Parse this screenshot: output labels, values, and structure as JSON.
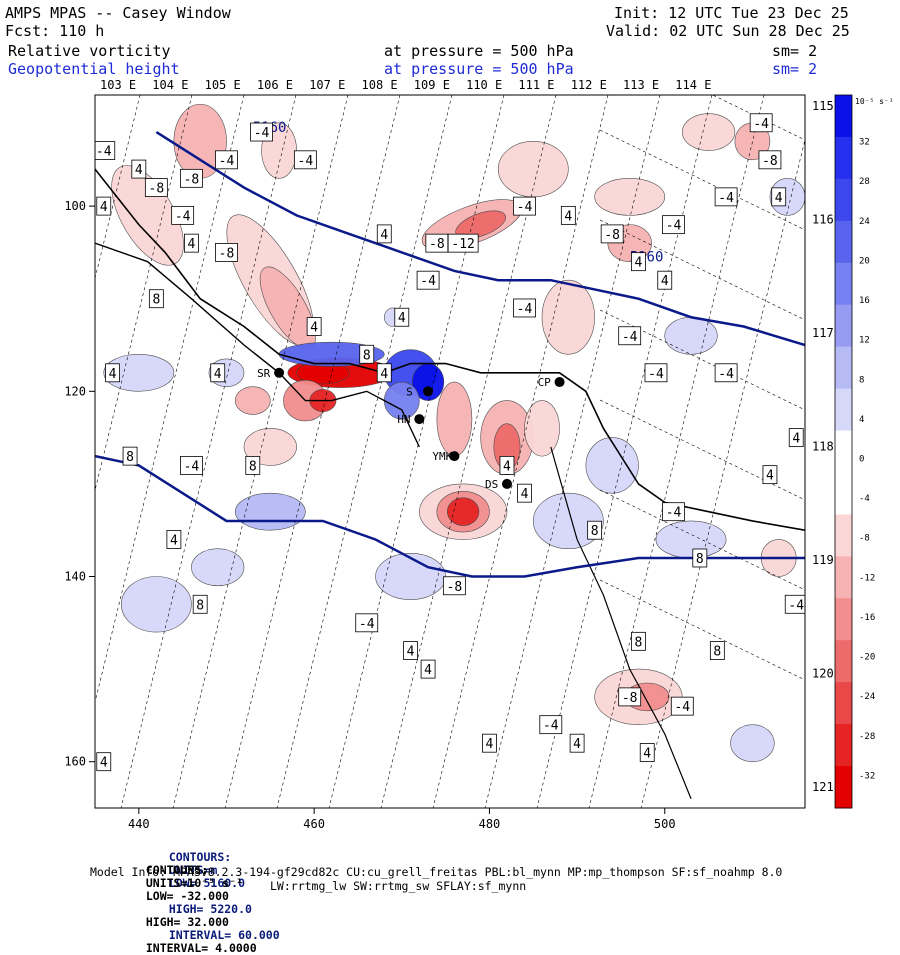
{
  "header": {
    "title": "AMPS MPAS -- Casey Window",
    "fcst": "Fcst: 110 h",
    "init": "Init: 12 UTC Tue 23 Dec 25",
    "valid": "Valid: 02 UTC Sun 28 Dec 25",
    "field1": {
      "name": "Relative vorticity",
      "level": "at pressure = 500 hPa",
      "sm": "sm= 2"
    },
    "field2": {
      "name": "Geopotential height",
      "level": "at pressure = 500 hPa",
      "sm": "sm= 2"
    }
  },
  "map": {
    "lon_top_labels": [
      "103 E",
      "104 E",
      "105 E",
      "106 E",
      "107 E",
      "108 E",
      "109 E",
      "110 E",
      "111 E",
      "112 E",
      "113 E",
      "114 E"
    ],
    "lon_right_labels": [
      "115 E",
      "116 E",
      "117 E",
      "118 E",
      "119 E",
      "120 E",
      "121 E"
    ],
    "x_ticks": [
      440,
      460,
      480,
      500
    ],
    "y_ticks": [
      100,
      120,
      140,
      160
    ],
    "x_range": [
      435,
      516
    ],
    "y_range": [
      88,
      165
    ],
    "height_contour_label": "5160",
    "station_labels": [
      "SR",
      "CP",
      "HN",
      "YMKS",
      "DS",
      "S"
    ],
    "contour_value_labels": [
      {
        "x": 436,
        "y": 94,
        "t": "-4"
      },
      {
        "x": 440,
        "y": 96,
        "t": "4"
      },
      {
        "x": 442,
        "y": 98,
        "t": "-8"
      },
      {
        "x": 446,
        "y": 97,
        "t": "-8"
      },
      {
        "x": 450,
        "y": 95,
        "t": "-4"
      },
      {
        "x": 454,
        "y": 92,
        "t": "-4"
      },
      {
        "x": 459,
        "y": 95,
        "t": "-4"
      },
      {
        "x": 468,
        "y": 103,
        "t": "4"
      },
      {
        "x": 474,
        "y": 104,
        "t": "-8"
      },
      {
        "x": 477,
        "y": 104,
        "t": "-12"
      },
      {
        "x": 484,
        "y": 100,
        "t": "-4"
      },
      {
        "x": 489,
        "y": 101,
        "t": "4"
      },
      {
        "x": 494,
        "y": 103,
        "t": "-8"
      },
      {
        "x": 501,
        "y": 102,
        "t": "-4"
      },
      {
        "x": 507,
        "y": 99,
        "t": "-4"
      },
      {
        "x": 513,
        "y": 99,
        "t": "4"
      },
      {
        "x": 512,
        "y": 95,
        "t": "-8"
      },
      {
        "x": 511,
        "y": 91,
        "t": "-4"
      },
      {
        "x": 436,
        "y": 100,
        "t": "4"
      },
      {
        "x": 445,
        "y": 101,
        "t": "-4"
      },
      {
        "x": 446,
        "y": 104,
        "t": "4"
      },
      {
        "x": 450,
        "y": 105,
        "t": "-8"
      },
      {
        "x": 442,
        "y": 110,
        "t": "8"
      },
      {
        "x": 460,
        "y": 113,
        "t": "4"
      },
      {
        "x": 466,
        "y": 116,
        "t": "8"
      },
      {
        "x": 470,
        "y": 112,
        "t": "4"
      },
      {
        "x": 473,
        "y": 108,
        "t": "-4"
      },
      {
        "x": 484,
        "y": 111,
        "t": "-4"
      },
      {
        "x": 497,
        "y": 106,
        "t": "4"
      },
      {
        "x": 500,
        "y": 108,
        "t": "4"
      },
      {
        "x": 496,
        "y": 114,
        "t": "-4"
      },
      {
        "x": 499,
        "y": 118,
        "t": "-4"
      },
      {
        "x": 507,
        "y": 118,
        "t": "-4"
      },
      {
        "x": 437,
        "y": 118,
        "t": "4"
      },
      {
        "x": 449,
        "y": 118,
        "t": "4"
      },
      {
        "x": 468,
        "y": 118,
        "t": "4"
      },
      {
        "x": 446,
        "y": 128,
        "t": "-4"
      },
      {
        "x": 453,
        "y": 128,
        "t": "8"
      },
      {
        "x": 444,
        "y": 136,
        "t": "4"
      },
      {
        "x": 439,
        "y": 127,
        "t": "8"
      },
      {
        "x": 447,
        "y": 143,
        "t": "8"
      },
      {
        "x": 466,
        "y": 145,
        "t": "-4"
      },
      {
        "x": 471,
        "y": 148,
        "t": "4"
      },
      {
        "x": 473,
        "y": 150,
        "t": "4"
      },
      {
        "x": 482,
        "y": 128,
        "t": "4"
      },
      {
        "x": 484,
        "y": 131,
        "t": "4"
      },
      {
        "x": 492,
        "y": 135,
        "t": "8"
      },
      {
        "x": 501,
        "y": 133,
        "t": "-4"
      },
      {
        "x": 504,
        "y": 138,
        "t": "8"
      },
      {
        "x": 512,
        "y": 129,
        "t": "4"
      },
      {
        "x": 515,
        "y": 125,
        "t": "4"
      },
      {
        "x": 515,
        "y": 143,
        "t": "-4"
      },
      {
        "x": 476,
        "y": 141,
        "t": "-8"
      },
      {
        "x": 497,
        "y": 147,
        "t": "8"
      },
      {
        "x": 506,
        "y": 148,
        "t": "8"
      },
      {
        "x": 496,
        "y": 153,
        "t": "-8"
      },
      {
        "x": 502,
        "y": 154,
        "t": "-4"
      },
      {
        "x": 487,
        "y": 156,
        "t": "-4"
      },
      {
        "x": 480,
        "y": 158,
        "t": "4"
      },
      {
        "x": 490,
        "y": 158,
        "t": "4"
      },
      {
        "x": 436,
        "y": 160,
        "t": "4"
      },
      {
        "x": 498,
        "y": 159,
        "t": "4"
      }
    ]
  },
  "colorbar": {
    "unit": "10⁻⁵ s⁻¹",
    "ticks": [
      "32",
      "28",
      "24",
      "20",
      "16",
      "12",
      "8",
      "4",
      "0",
      "-4",
      "-8",
      "-12",
      "-16",
      "-20",
      "-24",
      "-28",
      "-32"
    ],
    "colors": [
      "#0a10e8",
      "#2430ee",
      "#3c48ee",
      "#5864ee",
      "#7680f0",
      "#979cf2",
      "#b6baf5",
      "#d6d8fa",
      "#ffffff",
      "#ffffff",
      "#fbd6d6",
      "#f7b3b3",
      "#f28e8e",
      "#ee6b6b",
      "#ea4848",
      "#e62424",
      "#e30000"
    ]
  },
  "footer": {
    "line1": {
      "prefix": "CONTOURS:",
      "units": "UNITS=m",
      "low": "LOW= 5160.0",
      "high": "HIGH= 5220.0",
      "interval": "INTERVAL= 60.000"
    },
    "line2": {
      "prefix": "CONTOURS:",
      "units": "UNITS=10⁻⁵ s⁻¹",
      "low": "LOW= -32.000",
      "high": "HIGH= 32.000",
      "interval": "INTERVAL= 4.0000"
    },
    "model_info": "Model Info: MPASv8.2.3-194-gf29cd82c CU:cu_grell_freitas PBL:bl_mynn MP:mp_thompson SF:sf_noahmp 8.0",
    "model_info2": "LW:rrtmg_lw SW:rrtmg_sw SFLAY:sf_mynn"
  }
}
